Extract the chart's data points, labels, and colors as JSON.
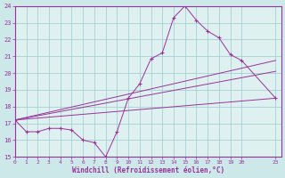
{
  "background_color": "#cce8e8",
  "plot_bg_color": "#dff0f0",
  "grid_color": "#99cccc",
  "line_color": "#993399",
  "border_color": "#993399",
  "xlabel": "Windchill (Refroidissement éolien,°C)",
  "xlim": [
    -0.5,
    23.5
  ],
  "ylim": [
    15,
    24
  ],
  "xtick_positions": [
    0,
    1,
    2,
    3,
    4,
    5,
    6,
    7,
    8,
    9,
    10,
    11,
    12,
    13,
    14,
    15,
    16,
    17,
    18,
    19,
    20,
    23
  ],
  "xtick_labels": [
    "0",
    "1",
    "2",
    "3",
    "4",
    "5",
    "6",
    "7",
    "8",
    "9",
    "10",
    "11",
    "12",
    "13",
    "14",
    "15",
    "16",
    "17",
    "18",
    "19",
    "20",
    "23"
  ],
  "yticks": [
    15,
    16,
    17,
    18,
    19,
    20,
    21,
    22,
    23,
    24
  ],
  "series0_x": [
    0,
    1,
    2,
    3,
    4,
    5,
    6,
    7,
    8,
    9,
    10,
    11,
    12,
    13,
    14,
    15,
    16,
    17,
    18,
    19,
    20,
    23
  ],
  "series0_y": [
    17.2,
    16.5,
    16.5,
    16.7,
    16.7,
    16.6,
    16.0,
    15.85,
    15.0,
    16.5,
    18.5,
    19.35,
    20.85,
    21.2,
    23.3,
    24.0,
    23.15,
    22.5,
    22.1,
    21.1,
    20.75,
    18.5
  ],
  "line1": {
    "x": [
      0,
      23
    ],
    "y": [
      17.2,
      18.5
    ]
  },
  "line2": {
    "x": [
      0,
      23
    ],
    "y": [
      17.2,
      20.1
    ]
  },
  "line3": {
    "x": [
      0,
      23
    ],
    "y": [
      17.2,
      20.75
    ]
  }
}
